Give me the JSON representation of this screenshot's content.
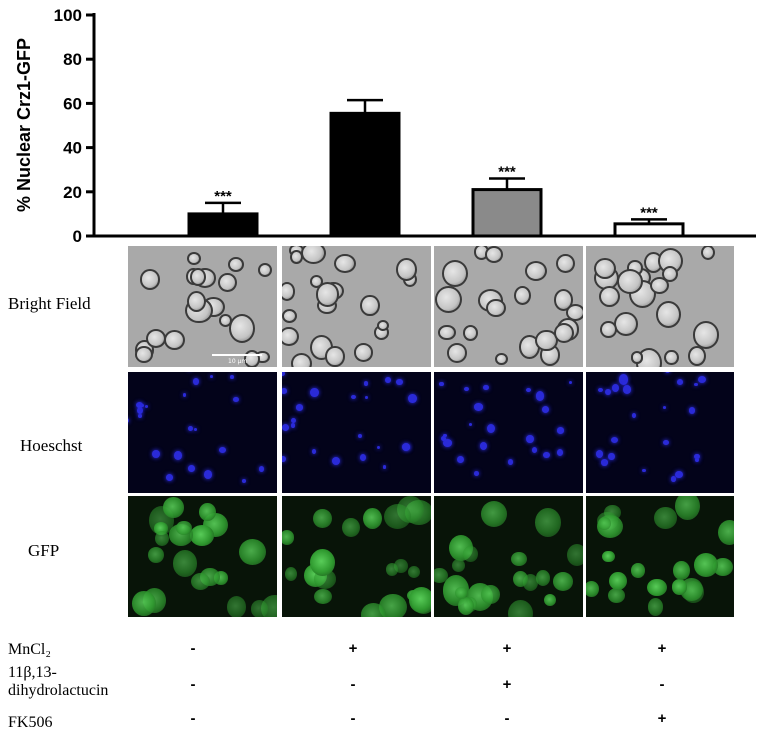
{
  "chart_data": {
    "type": "bar",
    "ylabel": "% Nuclear Crz1-GFP",
    "ylim": [
      0,
      100
    ],
    "yticks": [
      0,
      20,
      40,
      60,
      80,
      100
    ],
    "categories": [
      "",
      "",
      "",
      ""
    ],
    "values": [
      10,
      55.5,
      21,
      5.5
    ],
    "errors": [
      5,
      6,
      5,
      2
    ],
    "significance": [
      "***",
      "",
      "***",
      "***"
    ],
    "bar_colors": [
      "#000000",
      "#000000",
      "#8a8a8a",
      "#ffffff"
    ],
    "grid": false
  },
  "rows": {
    "bright_field": "Bright Field",
    "hoechst": "Hoeschst",
    "gfp": "GFP"
  },
  "scale_bar_label": "10 µm",
  "conditions": [
    {
      "label": "MnCl₂",
      "signs": [
        "-",
        "+",
        "+",
        "+"
      ]
    },
    {
      "label": "11β,13-dihydrolactucin",
      "label_line1": "11β,13-",
      "label_line2": "dihydrolactucin",
      "signs": [
        "-",
        "-",
        "+",
        "-"
      ]
    },
    {
      "label": "FK506",
      "signs": [
        "-",
        "-",
        "-",
        "+"
      ]
    }
  ]
}
